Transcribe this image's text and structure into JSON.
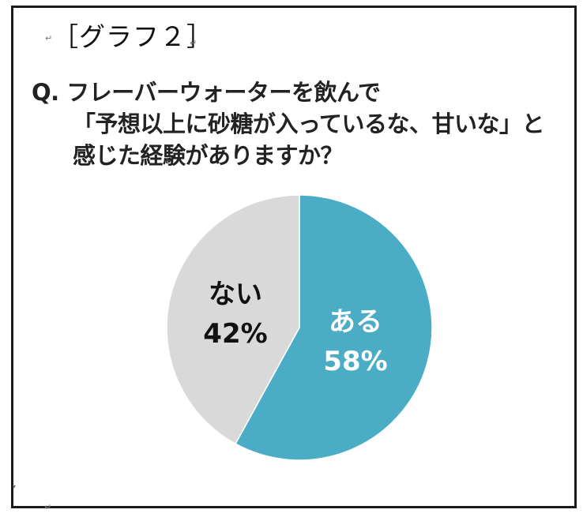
{
  "graph_label": "［グラフ２］",
  "question": {
    "line1": "Q. フレーバーウォーターを飲んで",
    "line2": "「予想以上に砂糖が入っているな、甘いな」と",
    "line3": "感じた経験がありますか？"
  },
  "paragraph_mark": "↵",
  "colors": {
    "yes": "#4bacc6",
    "no": "#d9d9d9",
    "border": "#1a1a1a"
  },
  "chart_data": {
    "type": "pie",
    "title": "Q. フレーバーウォーターを飲んで「予想以上に砂糖が入っているな、甘いな」と感じた経験がありますか？",
    "categories": [
      "ある",
      "ない"
    ],
    "values": [
      58,
      42
    ],
    "unit": "%",
    "colors": [
      "#4bacc6",
      "#d9d9d9"
    ],
    "start_angle": "12 o'clock, clockwise",
    "legend": "none (labels inside slices)",
    "labels": [
      {
        "category": "ある",
        "value_label": "58%"
      },
      {
        "category": "ない",
        "value_label": "42%"
      }
    ]
  }
}
